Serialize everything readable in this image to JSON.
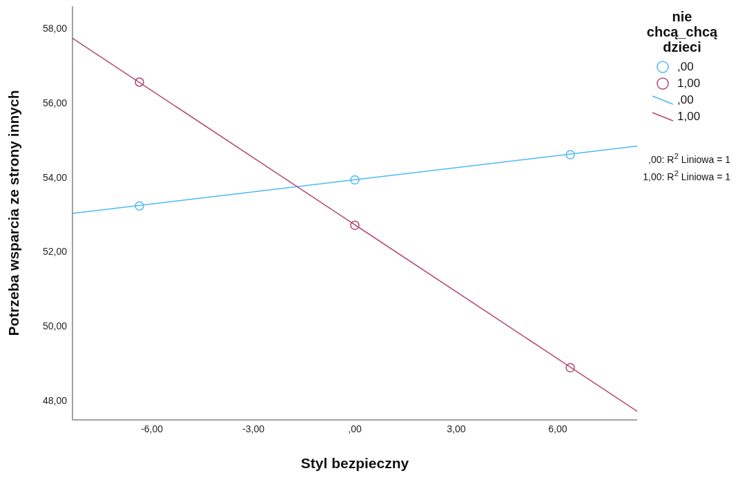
{
  "chart_data": {
    "type": "scatter",
    "xlabel": "Styl bezpieczny",
    "ylabel": "Potrzeba wsparcia ze strony innych",
    "legend_title": "nie chcą_chcą dzieci",
    "xlim": [
      -8.35,
      8.35
    ],
    "ylim": [
      47.48,
      58.6
    ],
    "xticks": [
      {
        "value": -6,
        "label": "-6,00"
      },
      {
        "value": -3,
        "label": "-3,00"
      },
      {
        "value": 0,
        "label": ",00"
      },
      {
        "value": 3,
        "label": "3,00"
      },
      {
        "value": 6,
        "label": "6,00"
      }
    ],
    "yticks": [
      {
        "value": 48,
        "label": "48,00"
      },
      {
        "value": 50,
        "label": "50,00"
      },
      {
        "value": 52,
        "label": "52,00"
      },
      {
        "value": 54,
        "label": "54,00"
      },
      {
        "value": 56,
        "label": "56,00"
      },
      {
        "value": 58,
        "label": "58,00"
      }
    ],
    "grid": false,
    "legend": "right",
    "marker": "circle",
    "series": [
      {
        "name": ",00",
        "color": "#4db8f2",
        "x": [
          -6.37,
          0,
          6.37
        ],
        "values": [
          53.23,
          53.93,
          54.61
        ]
      },
      {
        "name": "1,00",
        "color": "#b4476f",
        "x": [
          -6.37,
          0,
          6.37
        ],
        "values": [
          56.56,
          52.71,
          48.88
        ]
      },
      {
        "name": ",00",
        "type": "line",
        "marker": "none",
        "color": "#4db8f2",
        "x": [
          -8.35,
          8.35
        ],
        "values": [
          53.03,
          54.84
        ]
      },
      {
        "name": "1,00",
        "type": "line",
        "marker": "none",
        "color": "#b4476f",
        "x": [
          -8.35,
          8.35
        ],
        "values": [
          57.74,
          47.71
        ]
      }
    ],
    "annotations": [
      ",00: R$^{2}$ Liniowa = 1",
      "1,00: R$^{2}$ Liniowa = 1"
    ]
  }
}
